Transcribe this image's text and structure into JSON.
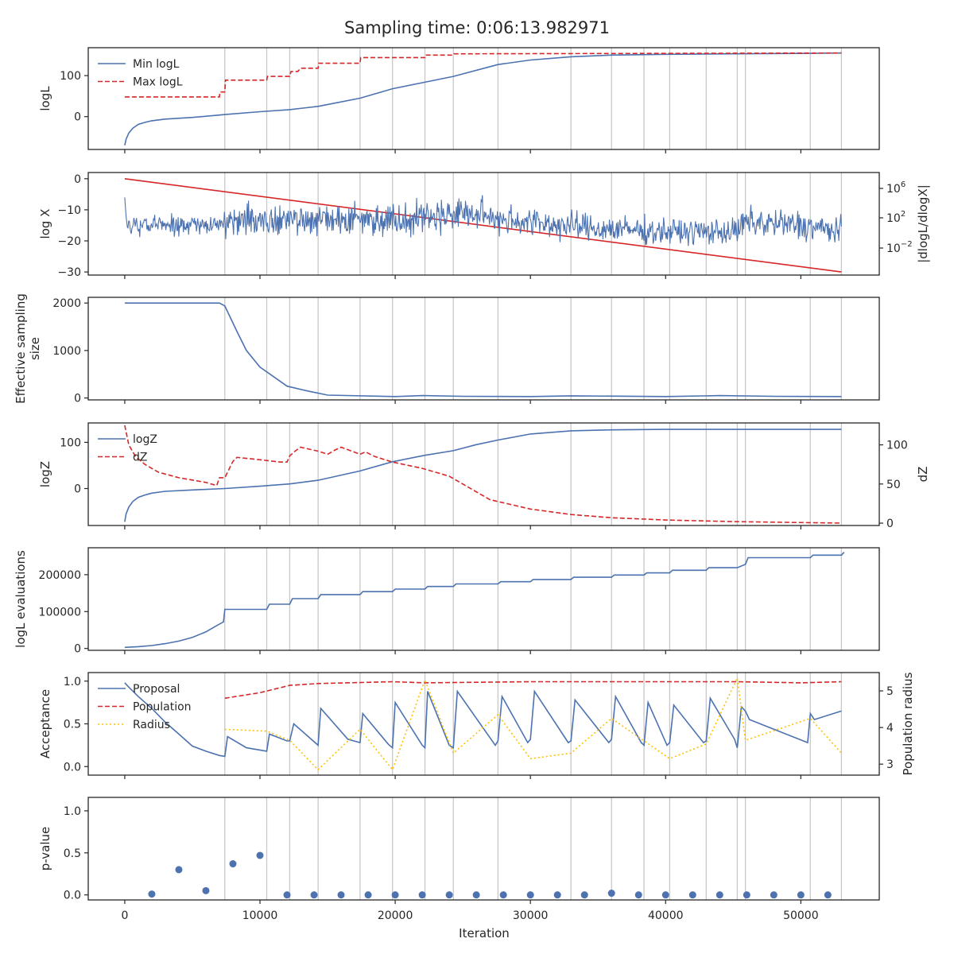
{
  "chart_data": {
    "title": "Sampling time: 0:06:13.982971",
    "xlabel": "Iteration",
    "xlim": [
      -2700,
      55800
    ],
    "xticks": [
      0,
      10000,
      20000,
      30000,
      40000,
      50000
    ],
    "xtick_labels": [
      "0",
      "10000",
      "20000",
      "30000",
      "40000",
      "50000"
    ],
    "insertion_lines": [
      7400,
      10500,
      12200,
      14300,
      17400,
      19800,
      22200,
      24300,
      27600,
      33000,
      36000,
      38400,
      40300,
      43000,
      45300,
      45900,
      50700,
      53000
    ],
    "colors": {
      "blue": "#4c72b0",
      "red": "#d62728",
      "yellow": "#ffc000",
      "vline": "#c8c8c8",
      "axes": "#262626"
    },
    "panels": [
      {
        "type": "line",
        "ylabel": "logL",
        "ylim": [
          -80,
          168
        ],
        "yticks": [
          0,
          100
        ],
        "legend_position": "top-left",
        "series": [
          {
            "name": "Min logL",
            "style": "solid",
            "color": "blue",
            "x": [
              0,
              100,
              300,
              600,
              1000,
              1500,
              2000,
              3000,
              5000,
              7400,
              10000,
              12200,
              14300,
              17400,
              19800,
              22200,
              24300,
              27600,
              30000,
              33000,
              36000,
              40000,
              45000,
              50000,
              53000
            ],
            "y": [
              -70,
              -55,
              -40,
              -28,
              -19,
              -14,
              -10,
              -6,
              -2,
              5,
              12,
              17,
              25,
              45,
              68,
              84,
              98,
              127,
              138,
              146,
              150,
              152,
              153,
              154,
              155
            ]
          },
          {
            "name": "Max logL",
            "style": "dashed",
            "color": "red",
            "x": [
              0,
              7000,
              7050,
              7400,
              7450,
              10500,
              10550,
              12200,
              12300,
              12800,
              13000,
              14300,
              14350,
              17400,
              17450,
              22200,
              22250,
              24300,
              24350,
              53000
            ],
            "y": [
              48,
              48,
              60,
              60,
              89,
              89,
              98,
              98,
              110,
              110,
              118,
              118,
              130,
              130,
              144,
              144,
              150,
              150,
              153,
              155
            ]
          }
        ]
      },
      {
        "type": "line",
        "ylabel": "log X",
        "y2label": "|dlogL/dlogX|",
        "ylim": [
          -31,
          2
        ],
        "yticks": [
          -30,
          -20,
          -10,
          0
        ],
        "y2ticks": [
          "10^6",
          "10^2",
          "10^-2"
        ],
        "series": [
          {
            "name": "",
            "style": "solid",
            "color": "red",
            "x": [
              0,
              53000
            ],
            "y": [
              0,
              -30
            ]
          },
          {
            "name": "",
            "style": "noisy",
            "color": "blue",
            "x": [
              0,
              7300,
              7400,
              12000,
              20000,
              25000,
              30000,
              35000,
              40000,
              45300,
              45900,
              50000,
              53000
            ],
            "y": [
              -15,
              -15,
              -13,
              -13,
              -13,
              -11,
              -14,
              -16,
              -17,
              -17,
              -14,
              -15,
              -17
            ],
            "spread": [
              4.5,
              4.5,
              7,
              7,
              7,
              7,
              6.5,
              6,
              5.5,
              5.5,
              7,
              6.5,
              6
            ]
          }
        ]
      },
      {
        "type": "line",
        "ylabel": "Effective sampling size",
        "ylim": [
          -40,
          2120
        ],
        "yticks": [
          0,
          1000,
          2000
        ],
        "series": [
          {
            "name": "",
            "style": "solid",
            "color": "blue",
            "x": [
              0,
              7000,
              7400,
              7800,
              8300,
              9000,
              10000,
              11000,
              12000,
              13500,
              15000,
              20000,
              22000,
              25000,
              30000,
              33000,
              40000,
              44000,
              48000,
              53000
            ],
            "y": [
              2000,
              2000,
              1940,
              1700,
              1400,
              1000,
              650,
              450,
              250,
              150,
              60,
              30,
              50,
              35,
              30,
              45,
              30,
              50,
              35,
              30
            ]
          }
        ]
      },
      {
        "type": "line",
        "ylabel": "logZ",
        "y2label": "dZ",
        "ylim": [
          -80,
          142
        ],
        "yticks": [
          0,
          100
        ],
        "y2lim": [
          -3,
          128
        ],
        "y2ticks": [
          0,
          50,
          100
        ],
        "legend_position": "top-left",
        "series": [
          {
            "name": "logZ",
            "style": "solid",
            "color": "blue",
            "axis": "left",
            "x": [
              0,
              100,
              300,
              600,
              1000,
              1500,
              2000,
              3000,
              5000,
              7400,
              10000,
              12200,
              14300,
              17400,
              19800,
              22200,
              24300,
              26000,
              27600,
              30000,
              33000,
              36000,
              40000,
              45000,
              53000
            ],
            "y": [
              -72,
              -55,
              -40,
              -28,
              -19,
              -14,
              -10,
              -6,
              -3,
              0,
              5,
              10,
              18,
              38,
              58,
              72,
              82,
              95,
              105,
              118,
              125,
              127,
              128,
              128,
              128
            ]
          },
          {
            "name": "dZ",
            "style": "dashed",
            "color": "red",
            "axis": "right",
            "x": [
              0,
              300,
              800,
              1500,
              2500,
              4000,
              6000,
              6800,
              7000,
              7400,
              8000,
              8300,
              10000,
              11500,
              12000,
              12200,
              12600,
              13000,
              14300,
              15000,
              15500,
              16000,
              17400,
              17800,
              18500,
              19800,
              22000,
              24000,
              25500,
              27000,
              30000,
              33000,
              36000,
              40000,
              45000,
              53000
            ],
            "y": [
              125,
              100,
              85,
              75,
              65,
              58,
              52,
              48,
              58,
              58,
              79,
              84,
              81,
              78,
              78,
              86,
              92,
              97,
              92,
              88,
              93,
              97,
              88,
              91,
              85,
              78,
              70,
              60,
              45,
              30,
              18,
              11,
              7,
              4,
              2,
              0
            ]
          }
        ]
      },
      {
        "type": "line",
        "ylabel": "logL evaluations",
        "ylim": [
          -5000,
          273000
        ],
        "yticks": [
          0,
          100000,
          200000
        ],
        "series": [
          {
            "name": "",
            "style": "solid",
            "color": "blue",
            "x": [
              0,
              1000,
              2000,
              3000,
              4000,
              5000,
              6000,
              6800,
              7300,
              7400,
              10500,
              10700,
              12200,
              12400,
              14300,
              14500,
              17400,
              17600,
              19800,
              20000,
              22200,
              22400,
              24300,
              24500,
              27600,
              27800,
              30000,
              30200,
              33000,
              33200,
              36000,
              36200,
              38400,
              38600,
              40300,
              40500,
              43000,
              43200,
              45300,
              45900,
              46100,
              50700,
              50900,
              53000,
              53200
            ],
            "y": [
              3000,
              5000,
              8000,
              13000,
              20000,
              30000,
              45000,
              62000,
              72000,
              106000,
              106000,
              120000,
              120000,
              135000,
              135000,
              146000,
              146000,
              154000,
              154000,
              161000,
              161000,
              168000,
              168000,
              175000,
              175000,
              181000,
              181000,
              187000,
              187000,
              193000,
              193000,
              199000,
              199000,
              205000,
              205000,
              212000,
              212000,
              219000,
              219000,
              228000,
              246000,
              246000,
              253000,
              253000,
              261000
            ]
          }
        ]
      },
      {
        "type": "line",
        "ylabel": "Acceptance",
        "y2label": "Population radius",
        "ylim": [
          -0.1,
          1.1
        ],
        "yticks": [
          0.0,
          0.5,
          1.0
        ],
        "y2lim": [
          2.7,
          5.5
        ],
        "y2ticks": [
          3,
          4,
          5
        ],
        "legend_position": "top-left",
        "series": [
          {
            "name": "Proposal",
            "style": "solid",
            "color": "blue",
            "axis": "left",
            "x": [
              0,
              300,
              1000,
              2000,
              3000,
              4000,
              5000,
              6000,
              7000,
              7400,
              7600,
              9000,
              10500,
              10700,
              12000,
              12200,
              12500,
              14300,
              14500,
              16500,
              17400,
              17600,
              19500,
              19800,
              20000,
              22000,
              22200,
              22400,
              24000,
              24300,
              24600,
              27400,
              27600,
              27900,
              29800,
              30000,
              30300,
              32800,
              33000,
              33300,
              35800,
              36000,
              36300,
              38200,
              38400,
              38700,
              40100,
              40300,
              40600,
              42800,
              43000,
              43300,
              45100,
              45300,
              45600,
              45900,
              46200,
              50500,
              50700,
              51000,
              53000
            ],
            "y": [
              0.98,
              0.93,
              0.82,
              0.68,
              0.52,
              0.38,
              0.24,
              0.18,
              0.13,
              0.12,
              0.35,
              0.22,
              0.18,
              0.38,
              0.3,
              0.3,
              0.5,
              0.25,
              0.68,
              0.32,
              0.28,
              0.62,
              0.26,
              0.22,
              0.75,
              0.25,
              0.22,
              0.88,
              0.25,
              0.22,
              0.88,
              0.25,
              0.3,
              0.82,
              0.28,
              0.32,
              0.88,
              0.28,
              0.3,
              0.78,
              0.28,
              0.32,
              0.82,
              0.28,
              0.25,
              0.75,
              0.25,
              0.28,
              0.72,
              0.28,
              0.3,
              0.8,
              0.32,
              0.22,
              0.7,
              0.65,
              0.55,
              0.28,
              0.62,
              0.55,
              0.65
            ]
          },
          {
            "name": "Population",
            "style": "dashed",
            "color": "red",
            "axis": "right",
            "x": [
              7400,
              10000,
              12200,
              14300,
              19800,
              22200,
              30000,
              40000,
              45300,
              50000,
              53000
            ],
            "y": [
              4.8,
              4.95,
              5.15,
              5.2,
              5.25,
              5.22,
              5.25,
              5.25,
              5.25,
              5.22,
              5.25
            ]
          },
          {
            "name": "Radius",
            "style": "dotted",
            "color": "yellow",
            "axis": "right",
            "x": [
              7400,
              10500,
              12200,
              14300,
              17400,
              19800,
              22200,
              24300,
              27600,
              30000,
              33000,
              36000,
              40300,
              43000,
              45300,
              45900,
              50700,
              53000
            ],
            "y": [
              3.95,
              3.9,
              3.65,
              2.85,
              3.95,
              2.85,
              5.3,
              3.3,
              4.35,
              3.15,
              3.3,
              4.25,
              3.15,
              3.55,
              5.35,
              3.65,
              4.25,
              3.3
            ]
          }
        ]
      },
      {
        "type": "scatter",
        "ylabel": "p-value",
        "ylim": [
          -0.06,
          1.16
        ],
        "yticks": [
          0.0,
          0.5,
          1.0
        ],
        "series": [
          {
            "name": "",
            "color": "blue",
            "x": [
              2000,
              4000,
              6000,
              8000,
              10000,
              12000,
              14000,
              16000,
              18000,
              20000,
              22000,
              24000,
              26000,
              28000,
              30000,
              32000,
              34000,
              36000,
              38000,
              40000,
              42000,
              44000,
              46000,
              48000,
              50000,
              52000
            ],
            "y": [
              0.01,
              0.3,
              0.05,
              0.37,
              0.47,
              0.0,
              0.0,
              0.0,
              0.0,
              0.0,
              0.0,
              0.0,
              0.0,
              0.0,
              0.0,
              0.0,
              0.0,
              0.02,
              0.0,
              0.0,
              0.0,
              0.0,
              0.0,
              0.0,
              0.0,
              0.0
            ]
          }
        ]
      }
    ]
  }
}
